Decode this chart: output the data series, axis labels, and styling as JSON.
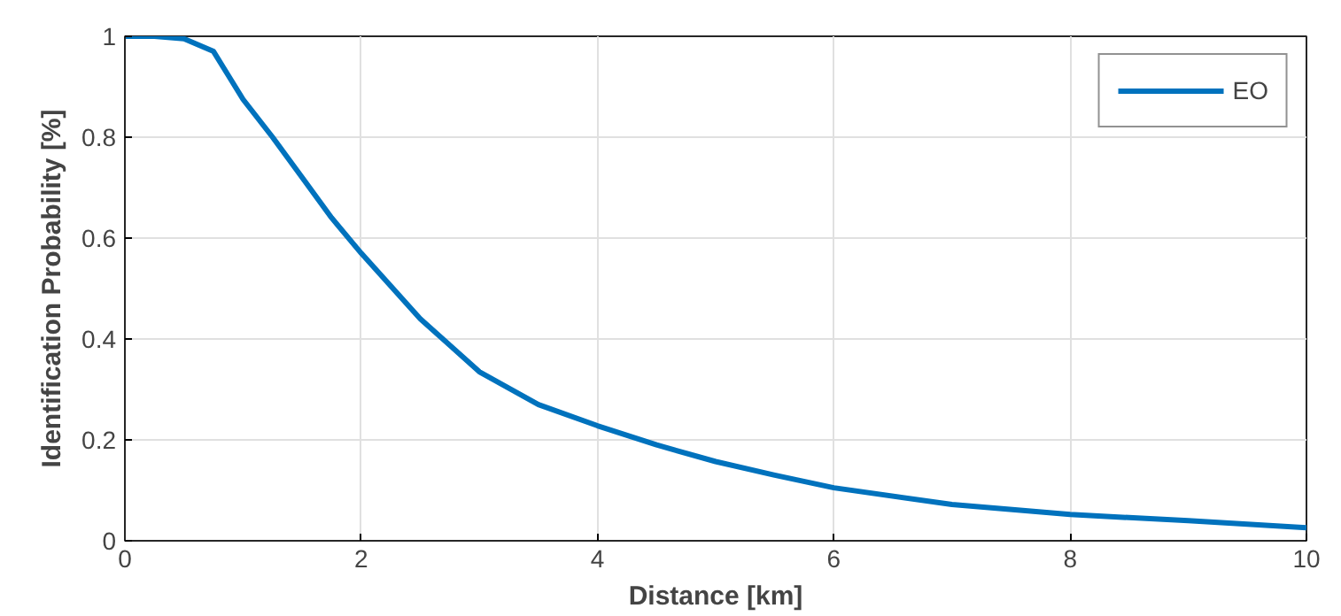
{
  "chart_data": {
    "type": "line",
    "xlabel": "Distance [km]",
    "ylabel": "Identification Probability [%]",
    "x": [
      0,
      0.25,
      0.5,
      0.75,
      1,
      1.25,
      1.5,
      1.75,
      2,
      2.5,
      3,
      3.5,
      4,
      4.5,
      5,
      5.5,
      6,
      7,
      8,
      9,
      10
    ],
    "series": [
      {
        "name": "EO",
        "color": "#0072bd",
        "values": [
          1,
          1,
          0.995,
          0.97,
          0.875,
          0.8,
          0.72,
          0.64,
          0.57,
          0.44,
          0.335,
          0.27,
          0.228,
          0.19,
          0.157,
          0.13,
          0.105,
          0.072,
          0.052,
          0.04,
          0.026
        ]
      }
    ],
    "xlim": [
      0,
      10
    ],
    "xticks": [
      0,
      2,
      4,
      6,
      8,
      10
    ],
    "ylim": [
      0,
      1
    ],
    "yticks": [
      0,
      0.2,
      0.4,
      0.6,
      0.8,
      1
    ],
    "grid": true,
    "legend": "top right",
    "marker": "none",
    "line_style": "solid"
  }
}
